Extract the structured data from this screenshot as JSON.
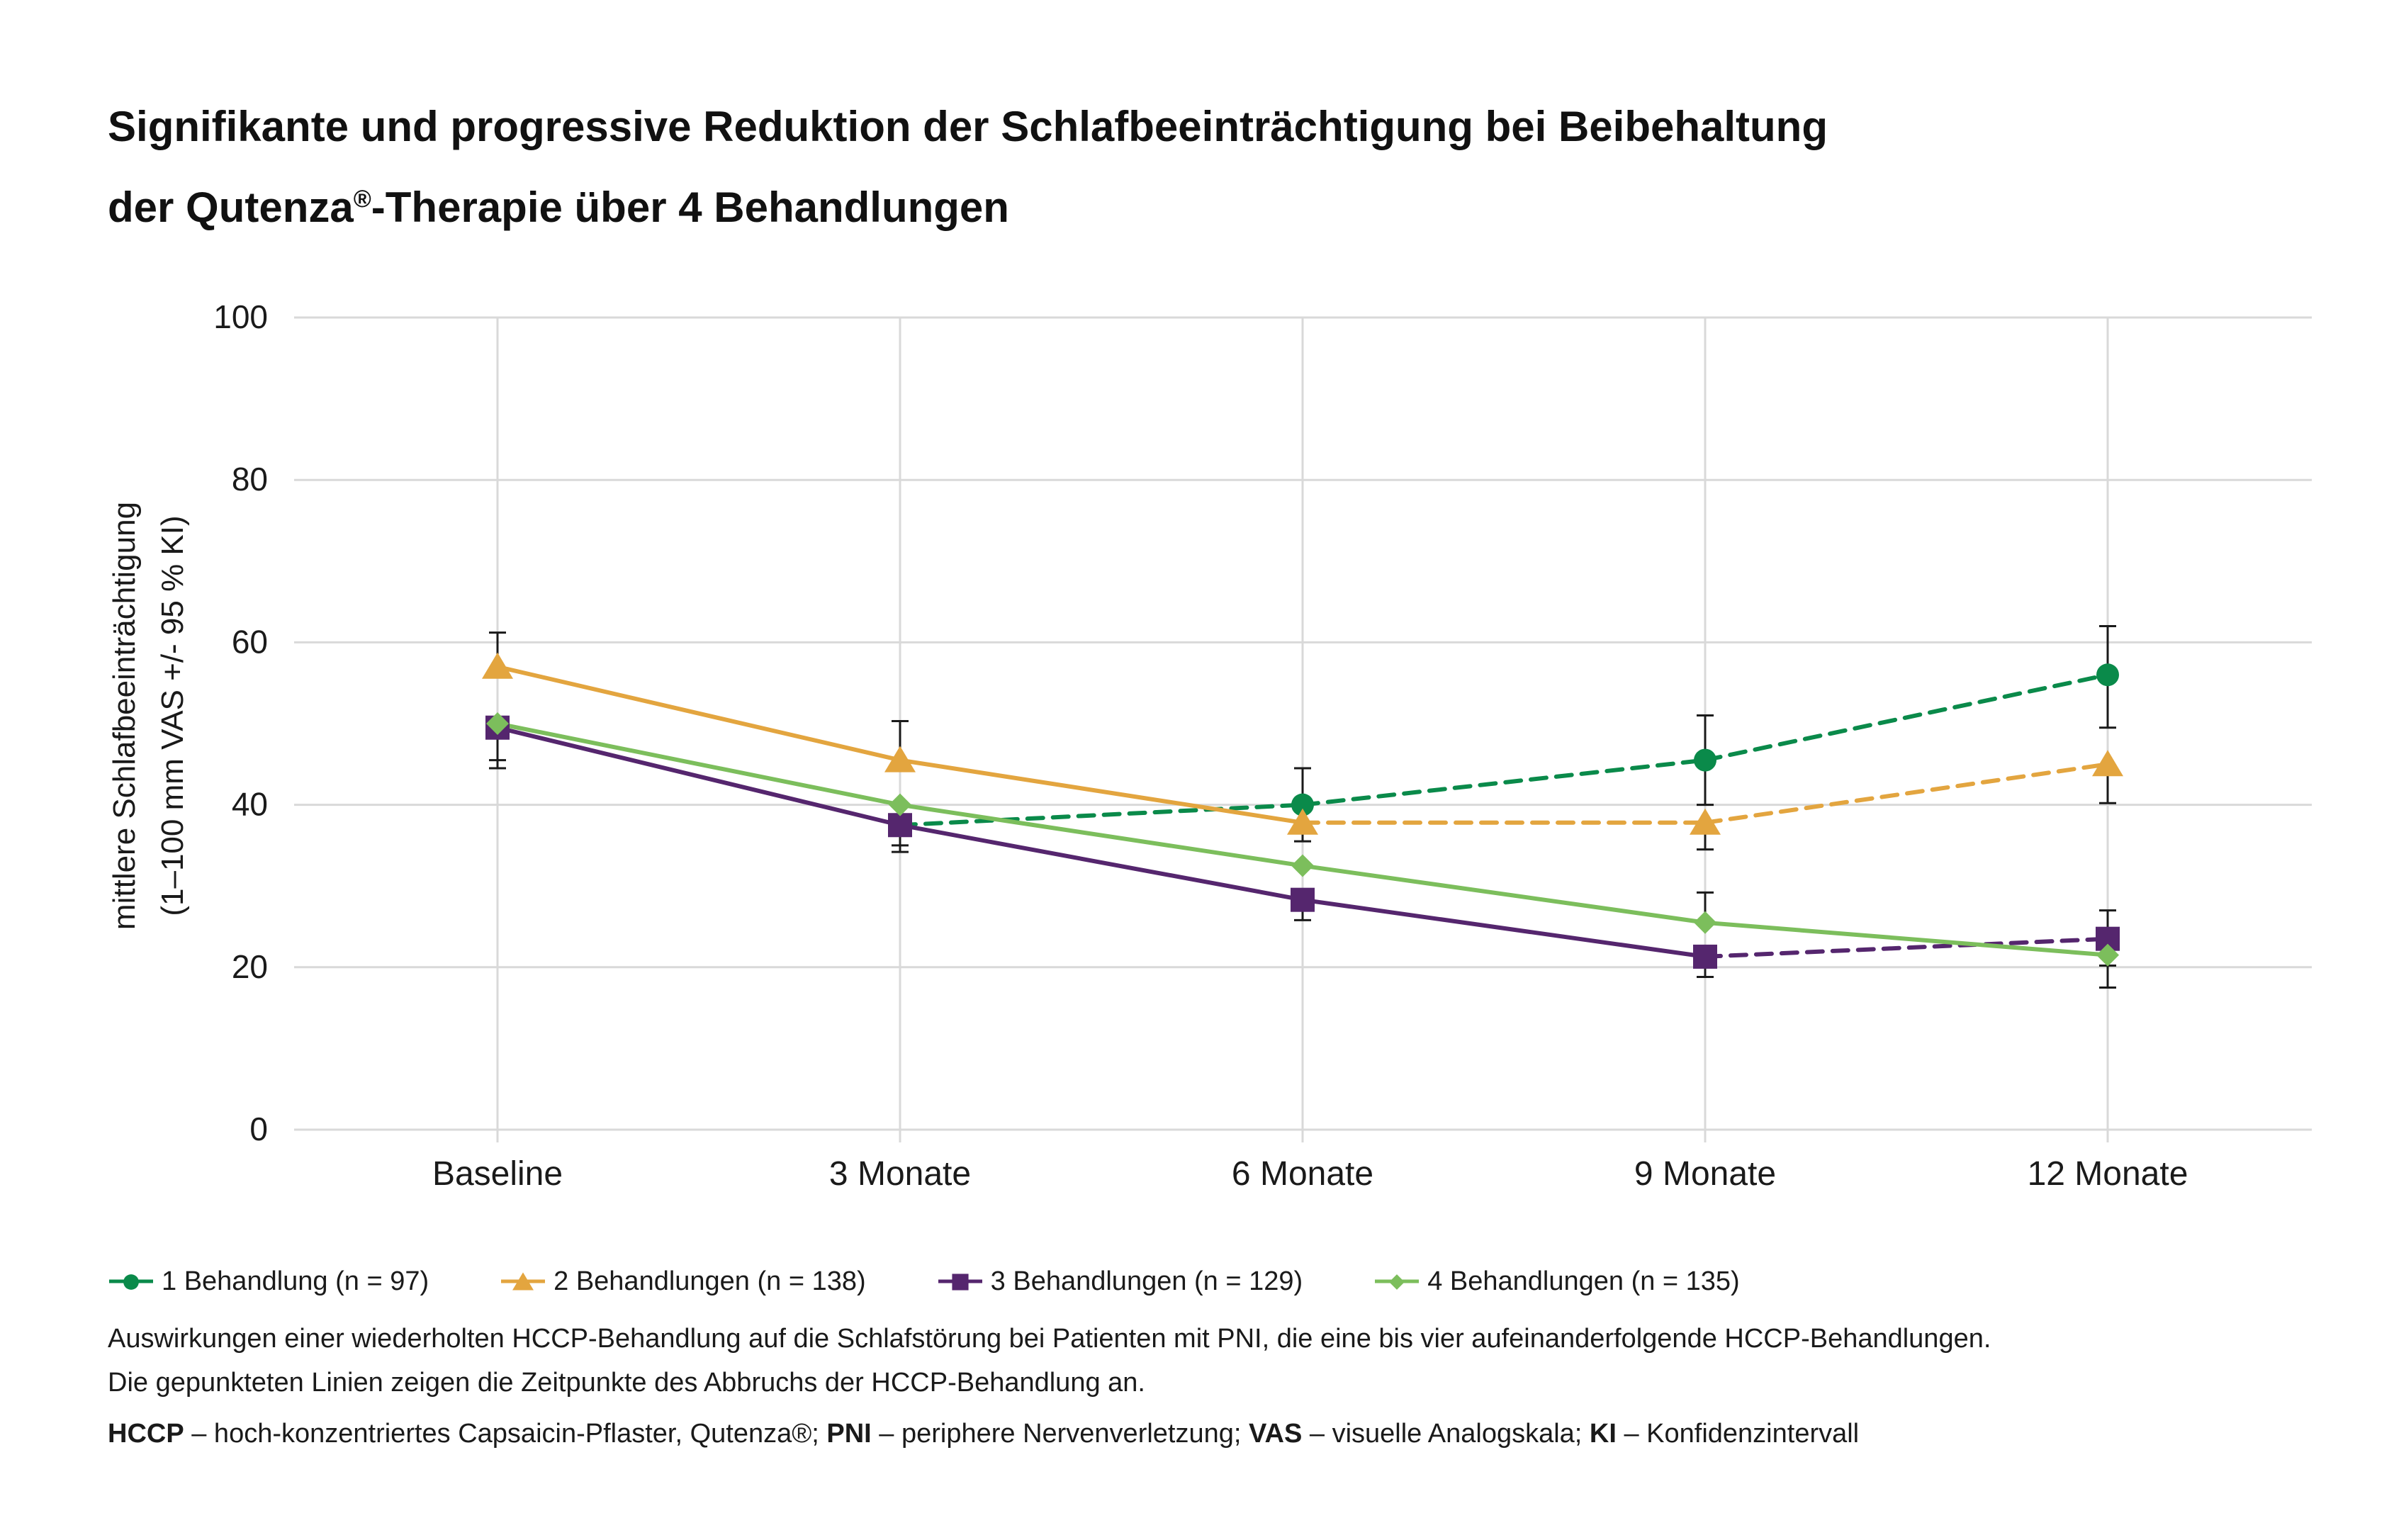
{
  "title": {
    "line1": "Signifikante und progressive Reduktion der Schlafbeeinträchtigung bei Beibehaltung",
    "line2_pre": "der Qutenza",
    "line2_sup": "®",
    "line2_post": "-Therapie über 4 Behandlungen"
  },
  "colors": {
    "behandlung1": "#0a8a4a",
    "behandlung2": "#e3a53f",
    "behandlung3": "#55266e",
    "behandlung4": "#7cbe5c",
    "grid": "#d9d9d9",
    "text": "#1a1a1a"
  },
  "chart_data": {
    "type": "line",
    "categories": [
      "Baseline",
      "3 Monate",
      "6 Monate",
      "9 Monate",
      "12 Monate"
    ],
    "ylabel_line1": "mittlere Schlafbeeinträchtigung",
    "ylabel_line2": "(1–100 mm VAS +/- 95 % KI)",
    "ylim": [
      0,
      100
    ],
    "yticks": [
      0,
      20,
      40,
      60,
      80,
      100
    ],
    "grid": true,
    "legend_position": "bottom",
    "series": [
      {
        "name": "1 Behandlung (n = 97)",
        "marker": "circle",
        "color": "#0a8a4a",
        "values": [
          null,
          37.5,
          40,
          45.5,
          56
        ],
        "ci_low": [
          null,
          null,
          35.5,
          40,
          49.5
        ],
        "ci_high": [
          null,
          null,
          44.5,
          51,
          62
        ],
        "solid_until_index": 1
      },
      {
        "name": "2 Behandlungen (n = 138)",
        "marker": "triangle",
        "color": "#e3a53f",
        "values": [
          57,
          45.5,
          37.8,
          37.8,
          45
        ],
        "ci_low": [
          null,
          null,
          null,
          34.5,
          40.2
        ],
        "ci_high": [
          61.2,
          50.3,
          null,
          null,
          null
        ],
        "solid_until_index": 2
      },
      {
        "name": "3 Behandlungen (n = 129)",
        "marker": "square",
        "color": "#55266e",
        "values": [
          49.5,
          37.5,
          28.3,
          21.3,
          23.5
        ],
        "ci_low": [
          44.5,
          34.2,
          25.8,
          18.8,
          20.2
        ],
        "ci_high": [
          null,
          null,
          null,
          null,
          27
        ],
        "solid_until_index": 3
      },
      {
        "name": "4 Behandlungen (n = 135)",
        "marker": "diamond",
        "color": "#7cbe5c",
        "values": [
          50,
          40,
          32.5,
          25.5,
          21.5
        ],
        "ci_low": [
          45.5,
          35,
          null,
          null,
          17.5
        ],
        "ci_high": [
          null,
          null,
          null,
          29.2,
          null
        ],
        "solid_until_index": 4
      }
    ]
  },
  "notes": {
    "line1": "Auswirkungen einer wiederholten HCCP-Behandlung auf die Schlafstörung bei Patienten mit PNI, die eine bis vier aufeinanderfolgende HCCP-Behandlungen.",
    "line2": "Die gepunkteten Linien zeigen die Zeitpunkte des Abbruchs der HCCP-Behandlung an."
  },
  "abbreviations": [
    {
      "term": "HCCP",
      "definition": " – hoch-konzentriertes Capsaicin-Pflaster, Qutenza®; "
    },
    {
      "term": "PNI",
      "definition": " – periphere Nervenverletzung; "
    },
    {
      "term": "VAS",
      "definition": " – visuelle Analogskala; "
    },
    {
      "term": "KI",
      "definition": " – Konfidenzintervall"
    }
  ]
}
